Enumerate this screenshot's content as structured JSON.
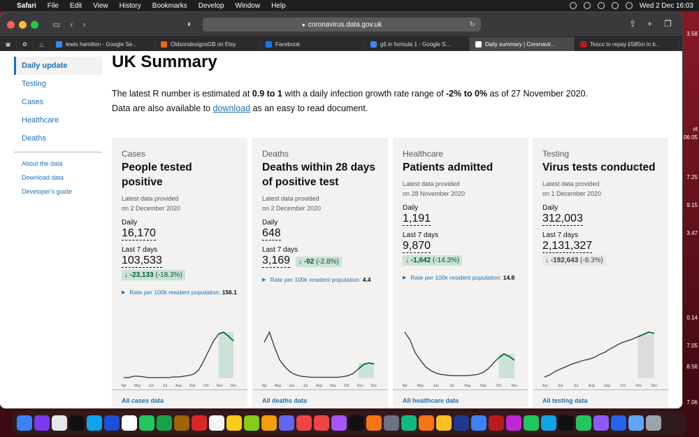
{
  "menubar": {
    "apple": "",
    "app": "Safari",
    "items": [
      "File",
      "Edit",
      "View",
      "History",
      "Bookmarks",
      "Develop",
      "Window",
      "Help"
    ],
    "clock": "Wed 2 Dec  16:03"
  },
  "edge_numbers": [
    "3.58",
    "ot",
    "06.05",
    "7.25",
    "9.15",
    "3.47",
    "0.14",
    "7.05",
    "8.56",
    "7.06"
  ],
  "browser": {
    "url": "coronavirus.data.gov.uk",
    "tabs": [
      {
        "label": "lewis hamilton - Google Se...",
        "color": "#4285f4",
        "active": false
      },
      {
        "label": "OldsondesignsGB on Etsy",
        "color": "#f1641e",
        "active": false
      },
      {
        "label": "Facebook",
        "color": "#1877f2",
        "active": false
      },
      {
        "label": "g5 in formula 1 - Google S...",
        "color": "#4285f4",
        "active": false
      },
      {
        "label": "Daily summary | Coronavir...",
        "color": "#0b0c0c",
        "active": true
      },
      {
        "label": "Tesco to repay £585m in b...",
        "color": "#bb1919",
        "active": false
      }
    ]
  },
  "nav": {
    "items": [
      "Daily update",
      "Testing",
      "Cases",
      "Healthcare",
      "Deaths"
    ],
    "sub": [
      "About the data",
      "Download data",
      "Developer's guide"
    ]
  },
  "page": {
    "title": "UK Summary",
    "intro_1a": "The latest R number is estimated at ",
    "intro_1b": "0.9 to 1",
    "intro_1c": " with a daily infection growth rate range of ",
    "intro_1d": "-2% to 0%",
    "intro_1e": " as of 27 November 2020.",
    "intro_2a": "Data are also available to ",
    "intro_2link": "download",
    "intro_2b": " as an easy to read document."
  },
  "cards": [
    {
      "cat": "Cases",
      "title": "People tested positive",
      "prov1": "Latest data provided",
      "prov2": "on 2 December 2020",
      "daily_label": "Daily",
      "daily": "16,170",
      "week_label": "Last 7 days",
      "week": "103,533",
      "arrow": "↓",
      "change": "-23,133",
      "pct": "(-18.3%)",
      "rate": "Rate per 100k resident population:",
      "rate_val": "156.1",
      "foot": "All cases data"
    },
    {
      "cat": "Deaths",
      "title": "Deaths within 28 days of positive test",
      "prov1": "Latest data provided",
      "prov2": "on 2 December 2020",
      "daily_label": "Daily",
      "daily": "648",
      "week_label": "Last 7 days",
      "week": "3,169",
      "arrow": "↓",
      "change": "-92",
      "pct": "(-2.8%)",
      "rate": "Rate per 100k resident population:",
      "rate_val": "4.4",
      "foot": "All deaths data"
    },
    {
      "cat": "Healthcare",
      "title": "Patients admitted",
      "prov1": "Latest data provided",
      "prov2": "on 28 November 2020",
      "daily_label": "Daily",
      "daily": "1,191",
      "week_label": "Last 7 days",
      "week": "9,870",
      "arrow": "↓",
      "change": "-1,642",
      "pct": "(-14.3%)",
      "rate": "Rate per 100k resident population:",
      "rate_val": "14.8",
      "foot": "All healthcare data"
    },
    {
      "cat": "Testing",
      "title": "Virus tests conducted",
      "prov1": "Latest data provided",
      "prov2": "on 1 December 2020",
      "daily_label": "Daily",
      "daily": "312,003",
      "week_label": "Last 7 days",
      "week": "2,131,327",
      "arrow": "↓",
      "change": "-192,643",
      "pct": "(-8.3%)",
      "rate": "",
      "rate_val": "",
      "foot": "All testing data"
    }
  ],
  "months_long": [
    "Apr",
    "May",
    "Jun",
    "Jul",
    "Aug",
    "Sep",
    "Oct",
    "Nov",
    "Dec"
  ],
  "months_short": [
    "May",
    "Jun",
    "Jul",
    "Aug",
    "Sep",
    "Oct",
    "Nov",
    "Dec"
  ],
  "months_health": [
    "Apr",
    "May",
    "Jun",
    "Jul",
    "Aug",
    "Sep",
    "Oct",
    "Nov"
  ],
  "trend": {
    "cases": [
      1,
      1,
      3,
      3,
      2,
      1,
      1,
      1,
      1,
      1,
      2,
      2,
      3,
      4,
      6,
      12,
      25,
      40,
      55,
      65,
      68,
      62,
      55
    ],
    "deaths": [
      70,
      90,
      60,
      35,
      22,
      12,
      7,
      4,
      3,
      2,
      2,
      2,
      2,
      2,
      2,
      3,
      5,
      9,
      18,
      27,
      30,
      28
    ],
    "health": [
      72,
      60,
      40,
      28,
      18,
      12,
      8,
      6,
      5,
      4,
      4,
      4,
      4,
      5,
      6,
      9,
      15,
      24,
      32,
      38,
      34,
      28
    ],
    "tests": [
      2,
      6,
      12,
      16,
      20,
      24,
      27,
      30,
      32,
      35,
      40,
      44,
      50,
      55,
      60,
      63,
      66,
      70,
      74,
      78,
      76
    ]
  }
}
